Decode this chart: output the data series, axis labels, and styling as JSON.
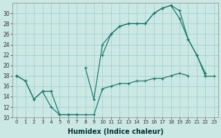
{
  "xlabel": "Humidex (Indice chaleur)",
  "xlim": [
    -0.5,
    23.5
  ],
  "ylim": [
    10,
    32
  ],
  "yticks": [
    10,
    12,
    14,
    16,
    18,
    20,
    22,
    24,
    26,
    28,
    30
  ],
  "xticks": [
    0,
    1,
    2,
    3,
    4,
    5,
    6,
    7,
    8,
    9,
    10,
    11,
    12,
    13,
    14,
    15,
    16,
    17,
    18,
    19,
    20,
    21,
    22,
    23
  ],
  "background_color": "#cce8e4",
  "grid_color": "#99cccc",
  "line_color": "#1a7a6a",
  "line1_y": [
    18,
    17,
    13.5,
    15,
    12,
    10.5,
    10.5,
    10.5,
    null,
    null,
    22,
    26,
    27.5,
    28,
    28,
    28,
    30,
    31,
    31.5,
    30.5,
    25,
    22,
    18.5,
    null
  ],
  "line2_y": [
    18,
    null,
    null,
    15,
    15,
    null,
    null,
    null,
    19.5,
    13.5,
    24,
    26,
    27.5,
    28,
    28,
    28,
    30,
    31,
    31.5,
    29,
    25,
    22,
    18,
    null
  ],
  "line3_y": [
    18,
    17,
    13.5,
    15,
    15,
    10.5,
    10.5,
    10.5,
    10.5,
    10.5,
    15.5,
    16,
    16.5,
    16.5,
    17,
    17,
    17.5,
    17.5,
    18,
    18.5,
    18,
    null,
    18,
    18
  ]
}
